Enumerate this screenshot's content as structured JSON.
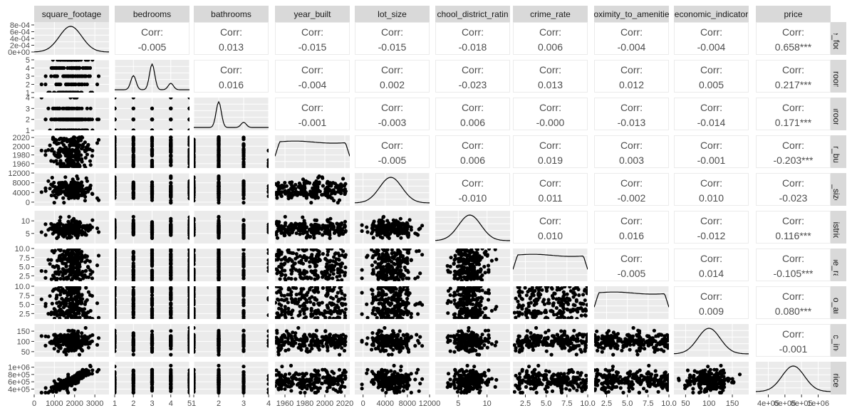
{
  "chart_data": {
    "type": "scatter",
    "variables": [
      "square_footage",
      "bedrooms",
      "bathrooms",
      "year_built",
      "lot_size",
      "school_district_rating",
      "crime_rate",
      "proximity_to_amenities",
      "economic_indicator",
      "price"
    ],
    "column_strips": [
      "square_footage",
      "bedrooms",
      "bathrooms",
      "year_built",
      "lot_size",
      "chool_district_ratin",
      "crime_rate",
      "oximity_to_amenitie",
      "economic_indicator",
      "price"
    ],
    "row_strips": [
      "are_foot",
      "edroom",
      "athroom",
      "ear_buil",
      "lot_size",
      "_district",
      "rime_rat",
      "y_to_am",
      "mic_ind",
      "price"
    ],
    "corr_label": "Corr:",
    "correlations": [
      {
        "row": 0,
        "col": 1,
        "value": "-0.005"
      },
      {
        "row": 0,
        "col": 2,
        "value": "0.013"
      },
      {
        "row": 0,
        "col": 3,
        "value": "-0.015"
      },
      {
        "row": 0,
        "col": 4,
        "value": "-0.015"
      },
      {
        "row": 0,
        "col": 5,
        "value": "-0.018"
      },
      {
        "row": 0,
        "col": 6,
        "value": "0.006"
      },
      {
        "row": 0,
        "col": 7,
        "value": "-0.004"
      },
      {
        "row": 0,
        "col": 8,
        "value": "-0.004"
      },
      {
        "row": 0,
        "col": 9,
        "value": "0.658***"
      },
      {
        "row": 1,
        "col": 2,
        "value": "0.016"
      },
      {
        "row": 1,
        "col": 3,
        "value": "-0.004"
      },
      {
        "row": 1,
        "col": 4,
        "value": "0.002"
      },
      {
        "row": 1,
        "col": 5,
        "value": "-0.023"
      },
      {
        "row": 1,
        "col": 6,
        "value": "0.013"
      },
      {
        "row": 1,
        "col": 7,
        "value": "0.012"
      },
      {
        "row": 1,
        "col": 8,
        "value": "0.005"
      },
      {
        "row": 1,
        "col": 9,
        "value": "0.217***"
      },
      {
        "row": 2,
        "col": 3,
        "value": "-0.001"
      },
      {
        "row": 2,
        "col": 4,
        "value": "-0.003"
      },
      {
        "row": 2,
        "col": 5,
        "value": "0.006"
      },
      {
        "row": 2,
        "col": 6,
        "value": "-0.000"
      },
      {
        "row": 2,
        "col": 7,
        "value": "-0.013"
      },
      {
        "row": 2,
        "col": 8,
        "value": "-0.014"
      },
      {
        "row": 2,
        "col": 9,
        "value": "0.171***"
      },
      {
        "row": 3,
        "col": 4,
        "value": "-0.005"
      },
      {
        "row": 3,
        "col": 5,
        "value": "0.006"
      },
      {
        "row": 3,
        "col": 6,
        "value": "0.019"
      },
      {
        "row": 3,
        "col": 7,
        "value": "0.003"
      },
      {
        "row": 3,
        "col": 8,
        "value": "-0.001"
      },
      {
        "row": 3,
        "col": 9,
        "value": "-0.203***"
      },
      {
        "row": 4,
        "col": 5,
        "value": "-0.010"
      },
      {
        "row": 4,
        "col": 6,
        "value": "0.011"
      },
      {
        "row": 4,
        "col": 7,
        "value": "-0.002"
      },
      {
        "row": 4,
        "col": 8,
        "value": "0.010"
      },
      {
        "row": 4,
        "col": 9,
        "value": "-0.023"
      },
      {
        "row": 5,
        "col": 6,
        "value": "0.010"
      },
      {
        "row": 5,
        "col": 7,
        "value": "0.016"
      },
      {
        "row": 5,
        "col": 8,
        "value": "-0.012"
      },
      {
        "row": 5,
        "col": 9,
        "value": "0.116***"
      },
      {
        "row": 6,
        "col": 7,
        "value": "-0.005"
      },
      {
        "row": 6,
        "col": 8,
        "value": "0.014"
      },
      {
        "row": 6,
        "col": 9,
        "value": "-0.105***"
      },
      {
        "row": 7,
        "col": 8,
        "value": "0.009"
      },
      {
        "row": 7,
        "col": 9,
        "value": "0.080***"
      },
      {
        "row": 8,
        "col": 9,
        "value": "-0.001"
      }
    ],
    "y_ticks": [
      [
        "0e+00",
        "2e-04",
        "4e-04",
        "6e-04",
        "8e-04"
      ],
      [
        "1",
        "2",
        "3",
        "4",
        "5"
      ],
      [
        "1",
        "2",
        "3",
        "4"
      ],
      [
        "1960",
        "1980",
        "2000",
        "2020"
      ],
      [
        "0",
        "4000",
        "8000",
        "12000"
      ],
      [
        "5",
        "10"
      ],
      [
        "2.5",
        "5.0",
        "7.5",
        "10.0"
      ],
      [
        "2.5",
        "5.0",
        "7.5",
        "10.0"
      ],
      [
        "50",
        "100",
        "150"
      ],
      [
        "4e+05",
        "6e+05",
        "8e+05",
        "1e+06"
      ]
    ],
    "x_ticks": [
      [
        "0",
        "1000",
        "2000",
        "3000"
      ],
      [
        "1",
        "2",
        "3",
        "4",
        "5"
      ],
      [
        "1",
        "2",
        "3",
        "4"
      ],
      [
        "1960",
        "1980",
        "2000",
        "2020"
      ],
      [
        "0",
        "4000",
        "8000",
        "12000"
      ],
      [
        "5",
        "10"
      ],
      [
        "2.5",
        "5.0",
        "7.5",
        "10.0"
      ],
      [
        "2.5",
        "5.0",
        "7.5",
        "10.0"
      ],
      [
        "50",
        "100",
        "150"
      ],
      [
        "4e+05",
        "6e+05",
        "8e+05",
        "1e+06"
      ]
    ],
    "ranges": [
      [
        0,
        3700
      ],
      [
        1,
        5
      ],
      [
        1,
        4
      ],
      [
        1950,
        2025
      ],
      [
        -1500,
        12000
      ],
      [
        1,
        14
      ],
      [
        1,
        10
      ],
      [
        1,
        10
      ],
      [
        25,
        185
      ],
      [
        250000,
        1150000
      ]
    ],
    "density_peaks": [
      [
        [
          1800,
          1.0
        ]
      ],
      [
        [
          2,
          0.55
        ],
        [
          3,
          1.0
        ],
        [
          4,
          0.25
        ]
      ],
      [
        [
          2,
          1.0
        ],
        [
          3,
          0.2
        ]
      ],
      "flat",
      [
        [
          5000,
          1.0
        ]
      ],
      [
        [
          7,
          1.0
        ]
      ],
      "flat",
      "flat",
      [
        [
          100,
          1.0
        ]
      ],
      [
        [
          700000,
          1.0
        ]
      ]
    ]
  },
  "colors": {
    "panel_bg": "#ebebeb",
    "grid": "#ffffff",
    "strip_bg": "#d9d9d9",
    "points": "#000000",
    "corr_text": "#4d4d4d"
  }
}
